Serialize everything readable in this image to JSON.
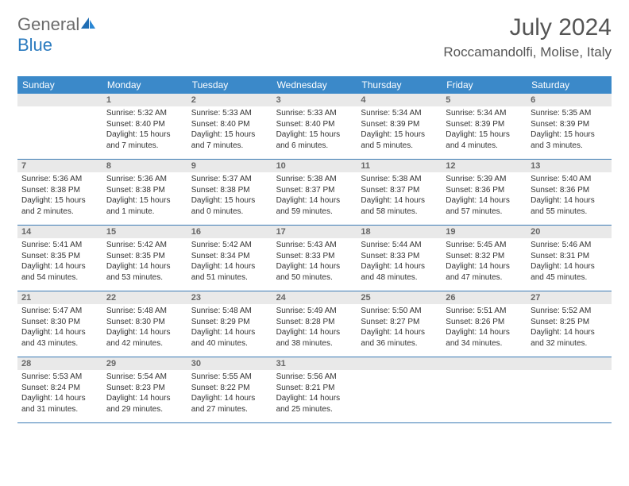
{
  "brand": {
    "general": "General",
    "blue": "Blue"
  },
  "title": "July 2024",
  "location": "Roccamandolfi, Molise, Italy",
  "header_bg": "#3b89c9",
  "divider_color": "#3b7bb5",
  "daynum_bg": "#e9e9e9",
  "text_color": "#333333",
  "muted_color": "#666666",
  "fonts": {
    "title_size": 30,
    "location_size": 17,
    "dow_size": 12,
    "daynum_size": 11,
    "info_size": 10
  },
  "days_of_week": [
    "Sunday",
    "Monday",
    "Tuesday",
    "Wednesday",
    "Thursday",
    "Friday",
    "Saturday"
  ],
  "weeks": [
    [
      null,
      {
        "n": "1",
        "sunrise": "5:32 AM",
        "sunset": "8:40 PM",
        "daylight": "15 hours and 7 minutes."
      },
      {
        "n": "2",
        "sunrise": "5:33 AM",
        "sunset": "8:40 PM",
        "daylight": "15 hours and 7 minutes."
      },
      {
        "n": "3",
        "sunrise": "5:33 AM",
        "sunset": "8:40 PM",
        "daylight": "15 hours and 6 minutes."
      },
      {
        "n": "4",
        "sunrise": "5:34 AM",
        "sunset": "8:39 PM",
        "daylight": "15 hours and 5 minutes."
      },
      {
        "n": "5",
        "sunrise": "5:34 AM",
        "sunset": "8:39 PM",
        "daylight": "15 hours and 4 minutes."
      },
      {
        "n": "6",
        "sunrise": "5:35 AM",
        "sunset": "8:39 PM",
        "daylight": "15 hours and 3 minutes."
      }
    ],
    [
      {
        "n": "7",
        "sunrise": "5:36 AM",
        "sunset": "8:38 PM",
        "daylight": "15 hours and 2 minutes."
      },
      {
        "n": "8",
        "sunrise": "5:36 AM",
        "sunset": "8:38 PM",
        "daylight": "15 hours and 1 minute."
      },
      {
        "n": "9",
        "sunrise": "5:37 AM",
        "sunset": "8:38 PM",
        "daylight": "15 hours and 0 minutes."
      },
      {
        "n": "10",
        "sunrise": "5:38 AM",
        "sunset": "8:37 PM",
        "daylight": "14 hours and 59 minutes."
      },
      {
        "n": "11",
        "sunrise": "5:38 AM",
        "sunset": "8:37 PM",
        "daylight": "14 hours and 58 minutes."
      },
      {
        "n": "12",
        "sunrise": "5:39 AM",
        "sunset": "8:36 PM",
        "daylight": "14 hours and 57 minutes."
      },
      {
        "n": "13",
        "sunrise": "5:40 AM",
        "sunset": "8:36 PM",
        "daylight": "14 hours and 55 minutes."
      }
    ],
    [
      {
        "n": "14",
        "sunrise": "5:41 AM",
        "sunset": "8:35 PM",
        "daylight": "14 hours and 54 minutes."
      },
      {
        "n": "15",
        "sunrise": "5:42 AM",
        "sunset": "8:35 PM",
        "daylight": "14 hours and 53 minutes."
      },
      {
        "n": "16",
        "sunrise": "5:42 AM",
        "sunset": "8:34 PM",
        "daylight": "14 hours and 51 minutes."
      },
      {
        "n": "17",
        "sunrise": "5:43 AM",
        "sunset": "8:33 PM",
        "daylight": "14 hours and 50 minutes."
      },
      {
        "n": "18",
        "sunrise": "5:44 AM",
        "sunset": "8:33 PM",
        "daylight": "14 hours and 48 minutes."
      },
      {
        "n": "19",
        "sunrise": "5:45 AM",
        "sunset": "8:32 PM",
        "daylight": "14 hours and 47 minutes."
      },
      {
        "n": "20",
        "sunrise": "5:46 AM",
        "sunset": "8:31 PM",
        "daylight": "14 hours and 45 minutes."
      }
    ],
    [
      {
        "n": "21",
        "sunrise": "5:47 AM",
        "sunset": "8:30 PM",
        "daylight": "14 hours and 43 minutes."
      },
      {
        "n": "22",
        "sunrise": "5:48 AM",
        "sunset": "8:30 PM",
        "daylight": "14 hours and 42 minutes."
      },
      {
        "n": "23",
        "sunrise": "5:48 AM",
        "sunset": "8:29 PM",
        "daylight": "14 hours and 40 minutes."
      },
      {
        "n": "24",
        "sunrise": "5:49 AM",
        "sunset": "8:28 PM",
        "daylight": "14 hours and 38 minutes."
      },
      {
        "n": "25",
        "sunrise": "5:50 AM",
        "sunset": "8:27 PM",
        "daylight": "14 hours and 36 minutes."
      },
      {
        "n": "26",
        "sunrise": "5:51 AM",
        "sunset": "8:26 PM",
        "daylight": "14 hours and 34 minutes."
      },
      {
        "n": "27",
        "sunrise": "5:52 AM",
        "sunset": "8:25 PM",
        "daylight": "14 hours and 32 minutes."
      }
    ],
    [
      {
        "n": "28",
        "sunrise": "5:53 AM",
        "sunset": "8:24 PM",
        "daylight": "14 hours and 31 minutes."
      },
      {
        "n": "29",
        "sunrise": "5:54 AM",
        "sunset": "8:23 PM",
        "daylight": "14 hours and 29 minutes."
      },
      {
        "n": "30",
        "sunrise": "5:55 AM",
        "sunset": "8:22 PM",
        "daylight": "14 hours and 27 minutes."
      },
      {
        "n": "31",
        "sunrise": "5:56 AM",
        "sunset": "8:21 PM",
        "daylight": "14 hours and 25 minutes."
      },
      null,
      null,
      null
    ]
  ],
  "labels": {
    "sunrise": "Sunrise:",
    "sunset": "Sunset:",
    "daylight": "Daylight:"
  }
}
